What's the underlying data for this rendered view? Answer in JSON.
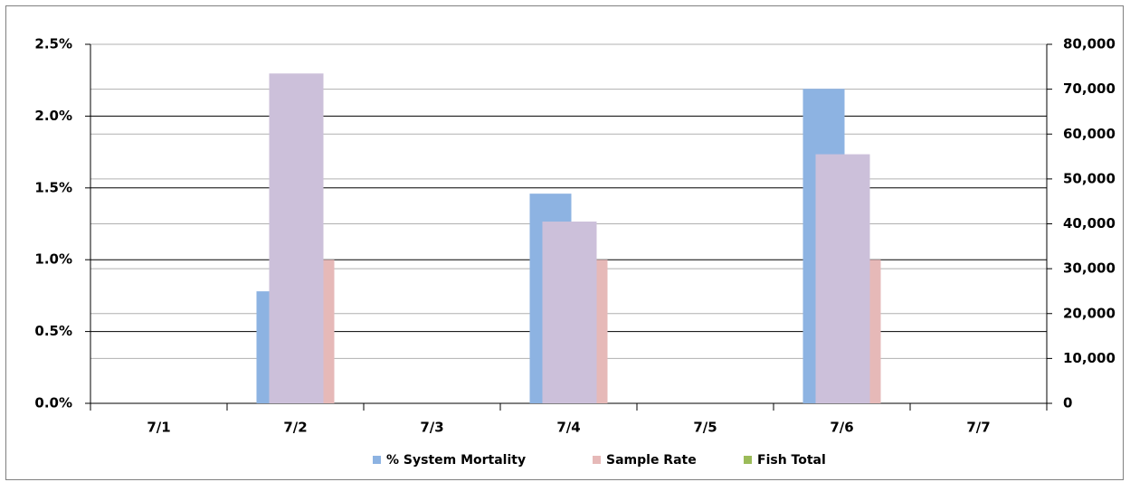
{
  "chart_data": {
    "type": "bar",
    "categories": [
      "7/1",
      "7/2",
      "7/3",
      "7/4",
      "7/5",
      "7/6",
      "7/7"
    ],
    "series": [
      {
        "name": "% System Mortality",
        "color": "#8db3e2",
        "values": [
          0,
          0.78,
          0,
          1.46,
          0,
          2.19,
          0
        ]
      },
      {
        "name": "Sample Rate",
        "color": "#e6b9b8",
        "values": [
          0,
          1.0,
          0,
          1.0,
          0,
          1.0,
          0
        ]
      },
      {
        "name": "Fish Total",
        "color": "#ccc0da",
        "legend_color": "#9bbb59",
        "axis": "y2",
        "values": [
          0,
          73500,
          0,
          40500,
          0,
          55500,
          0
        ]
      }
    ],
    "ylim": [
      0,
      2.5
    ],
    "yticks": [
      {
        "value": 0,
        "label": "0.0%"
      },
      {
        "value": 0.5,
        "label": "0.5%"
      },
      {
        "value": 1.0,
        "label": "1.0%"
      },
      {
        "value": 1.5,
        "label": "1.5%"
      },
      {
        "value": 2.0,
        "label": "2.0%"
      },
      {
        "value": 2.5,
        "label": "2.5%"
      }
    ],
    "y2lim": [
      0,
      80000
    ],
    "y2ticks": [
      0,
      {
        "value": 10000,
        "label": "10,000"
      },
      {
        "value": 20000,
        "label": "20,000"
      },
      {
        "value": 30000,
        "label": "30,000"
      },
      {
        "value": 40000,
        "label": "40,000"
      },
      {
        "value": 50000,
        "label": "50,000"
      },
      {
        "value": 60000,
        "label": "60,000"
      },
      {
        "value": 70000,
        "label": "70,000"
      },
      {
        "value": 80000,
        "label": "80,000"
      }
    ],
    "grid": true,
    "legend": "bottom"
  }
}
